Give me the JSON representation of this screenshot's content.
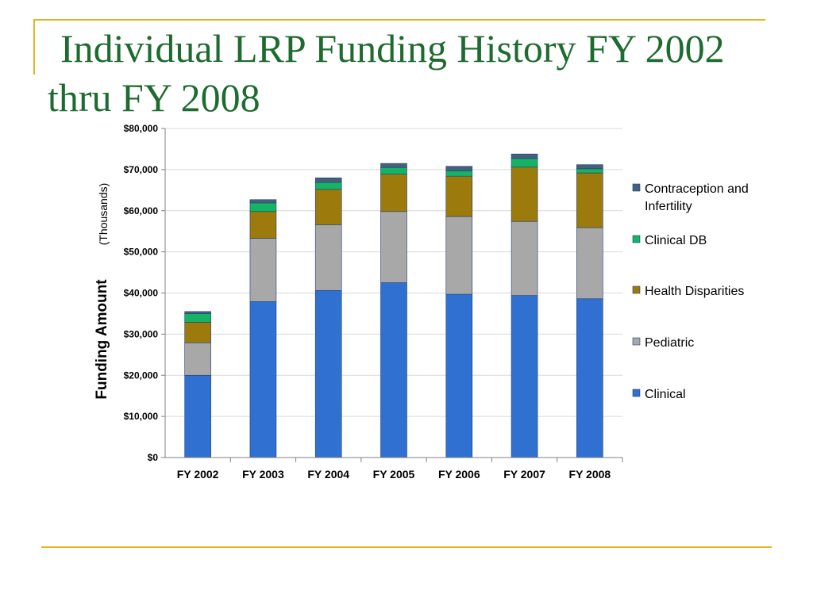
{
  "slide": {
    "title": "Individual LRP Funding History FY 2002 thru FY 2008"
  },
  "chart_data": {
    "type": "bar",
    "stacked": true,
    "title": "",
    "ylabel": "Funding Amount",
    "ylabel_unit": "(Thousands)",
    "xlabel": "",
    "ylim": [
      0,
      80000
    ],
    "y_ticks": [
      "$0",
      "$10,000",
      "$20,000",
      "$30,000",
      "$40,000",
      "$50,000",
      "$60,000",
      "$70,000",
      "$80,000"
    ],
    "grid": true,
    "legend_position": "right",
    "categories": [
      "FY 2002",
      "FY 2003",
      "FY 2004",
      "FY 2005",
      "FY 2006",
      "FY 2007",
      "FY 2008"
    ],
    "series": [
      {
        "name": "Clinical",
        "color": "#3070d0",
        "values": [
          20000,
          37900,
          40600,
          42500,
          39700,
          39400,
          38600
        ]
      },
      {
        "name": "Pediatric",
        "color": "#a8a8a8",
        "values": [
          7900,
          15400,
          16000,
          17300,
          18900,
          18000,
          17300
        ]
      },
      {
        "name": "Health Disparities",
        "color": "#9c7a0c",
        "values": [
          5000,
          6500,
          8600,
          9100,
          9800,
          13200,
          13300
        ]
      },
      {
        "name": "Clinical DB",
        "color": "#14b464",
        "values": [
          2100,
          2100,
          1700,
          1600,
          1300,
          2100,
          1000
        ]
      },
      {
        "name": "Contraception and Infertility",
        "color": "#46607c",
        "values": [
          500,
          800,
          1100,
          1000,
          1100,
          1100,
          1000
        ]
      }
    ],
    "legend_order": [
      "Contraception and Infertility",
      "Clinical DB",
      "Health Disparities",
      "Pediatric",
      "Clinical"
    ]
  }
}
